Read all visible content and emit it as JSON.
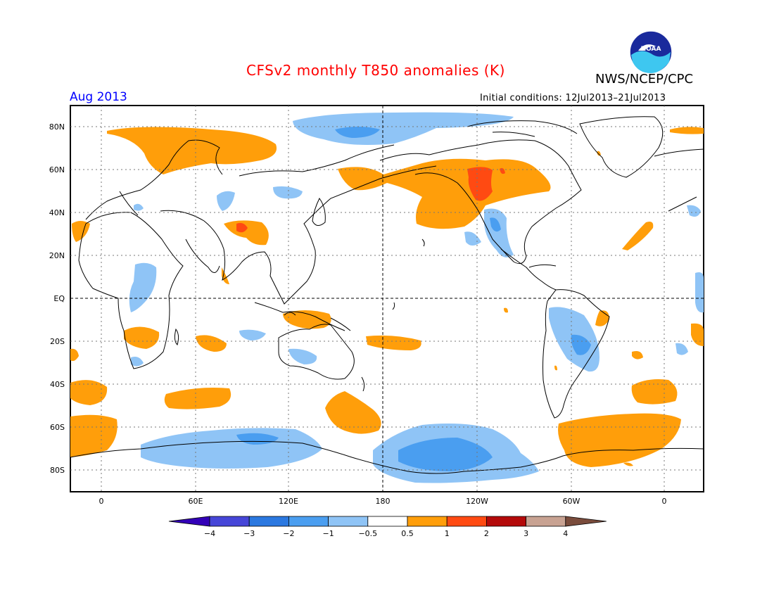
{
  "header": {
    "title": "CFSv2 monthly T850 anomalies (K)",
    "agency": "NWS/NCEP/CPC",
    "period": "Aug 2013",
    "initial_conditions": "Initial conditions: 12Jul2013–21Jul2013",
    "logo_text": "NOAA"
  },
  "map": {
    "projection": "cylindrical equidistant",
    "lat_ticks": [
      "80N",
      "60N",
      "40N",
      "20N",
      "EQ",
      "20S",
      "40S",
      "60S",
      "80S"
    ],
    "lon_ticks": [
      "0",
      "60E",
      "120E",
      "180",
      "120W",
      "60W",
      "0"
    ]
  },
  "colorbar": {
    "labels": [
      "−4",
      "−3",
      "−2",
      "−1",
      "−0.5",
      "0.5",
      "1",
      "2",
      "3",
      "4"
    ],
    "colors": [
      "#3300b8",
      "#4646d8",
      "#2b78e0",
      "#4a9ef0",
      "#8fc4f6",
      "#ffffff",
      "#ff9e0a",
      "#ff4a12",
      "#b40a0a",
      "#c8a292",
      "#7a4c3c"
    ],
    "units": "K"
  }
}
